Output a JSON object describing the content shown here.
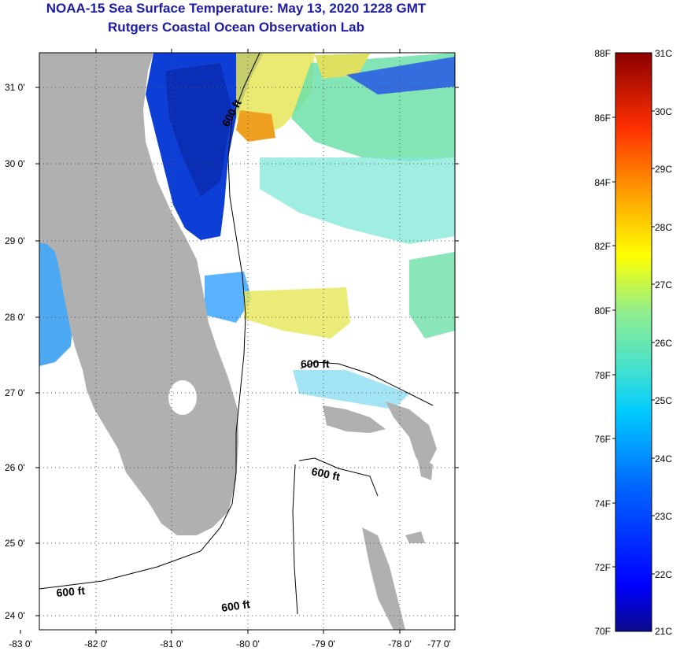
{
  "title": {
    "line1": "NOAA-15 Sea Surface Temperature:  May 13, 2020 1228 GMT",
    "line2": "Rutgers Coastal Ocean Observation Lab"
  },
  "map": {
    "lat_labels": [
      "31 0'",
      "30 0'",
      "29 0'",
      "28 0'",
      "27 0'",
      "26 0'",
      "25 0'",
      "24 0'"
    ],
    "lat_values": [
      31,
      30,
      29,
      28,
      27,
      26,
      25,
      24
    ],
    "lon_labels": [
      "-83 0'",
      "-82 0'",
      "-81 0'",
      "-80 0'",
      "-79 0'",
      "-78 0'",
      "-77 0'"
    ],
    "lon_values": [
      -83,
      -82,
      -81,
      -80,
      -79,
      -78,
      -77
    ],
    "depth_contour_labels": [
      "600 ft",
      "600 ft",
      "600 ft",
      "600 ft",
      "600 ft"
    ],
    "colors": {
      "land": "#b0b0b0",
      "water_no_data": "#ffffff"
    }
  },
  "colorbar": {
    "fahrenheit_labels": [
      "88F",
      "86F",
      "84F",
      "82F",
      "80F",
      "78F",
      "76F",
      "74F",
      "72F",
      "70F"
    ],
    "celsius_labels": [
      "31C",
      "30C",
      "29C",
      "28C",
      "27C",
      "26C",
      "25C",
      "24C",
      "23C",
      "22C",
      "21C"
    ],
    "range_f": [
      70,
      88
    ],
    "range_c": [
      21,
      31
    ],
    "colors": [
      "#0a0a8a",
      "#0000ff",
      "#0066ff",
      "#00ccff",
      "#40e0d0",
      "#90ee90",
      "#ffff00",
      "#ffa500",
      "#ff3000",
      "#8b0000"
    ]
  }
}
